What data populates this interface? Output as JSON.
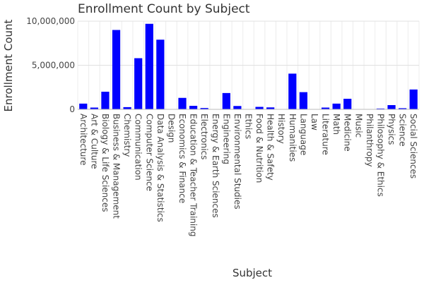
{
  "chart_data": {
    "type": "bar",
    "title": "Enrollment Count by Subject",
    "xlabel": "Subject",
    "ylabel": "Enrollment Count",
    "ylim": [
      0,
      10000000
    ],
    "yticks": [
      0,
      5000000,
      10000000
    ],
    "ytick_labels": [
      "0",
      "5,000,000",
      "10,000,000"
    ],
    "grid": true,
    "bar_color": "#0000ff",
    "categories": [
      "Architecture",
      "Art & Culture",
      "Biology & Life Sciences",
      "Business & Management",
      "Chemistry",
      "Communication",
      "Computer Science",
      "Data Analysis & Statistics",
      "Design",
      "Economics & Finance",
      "Education & Teacher Training",
      "Electronics",
      "Energy & Earth Sciences",
      "Engineering",
      "Environmental Studies",
      "Ethics",
      "Food & Nutrition",
      "Health & Safety",
      "History",
      "Humanities",
      "Language",
      "Law",
      "Literature",
      "Math",
      "Medicine",
      "Music",
      "Philanthropy",
      "Philosophy & Ethics",
      "Physics",
      "Science",
      "Social Sciences"
    ],
    "values": [
      650000,
      200000,
      2000000,
      9000000,
      250000,
      5800000,
      9700000,
      7900000,
      30000,
      1300000,
      400000,
      150000,
      20000,
      1850000,
      380000,
      20000,
      280000,
      220000,
      30000,
      4050000,
      1950000,
      20000,
      200000,
      650000,
      1200000,
      10000,
      20000,
      90000,
      480000,
      130000,
      2250000
    ]
  }
}
